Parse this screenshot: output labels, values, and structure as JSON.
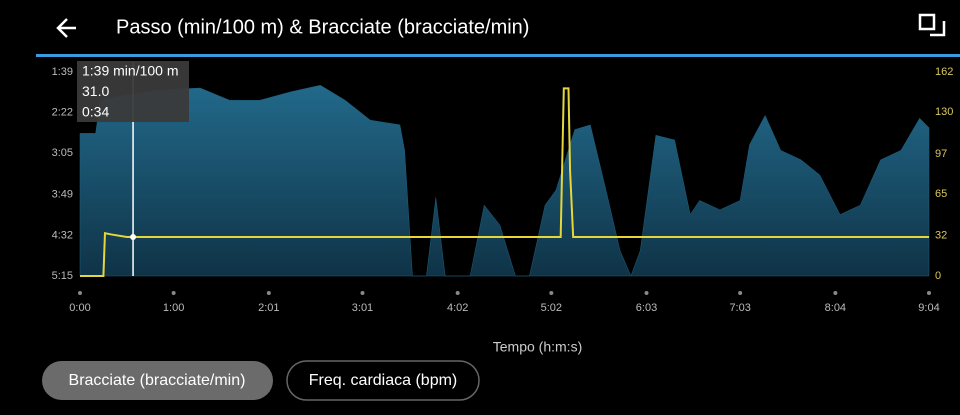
{
  "header": {
    "title": "Passo (min/100 m) & Bracciate (bracciate/min)"
  },
  "chart_data": {
    "type": "combo",
    "xlabel": "Tempo (h:m:s)",
    "xlim": [
      0,
      544
    ],
    "xticks": [
      {
        "value": 0,
        "label": "0:00"
      },
      {
        "value": 60,
        "label": "1:00"
      },
      {
        "value": 121,
        "label": "2:01"
      },
      {
        "value": 181,
        "label": "3:01"
      },
      {
        "value": 242,
        "label": "4:02"
      },
      {
        "value": 302,
        "label": "5:02"
      },
      {
        "value": 363,
        "label": "6:03"
      },
      {
        "value": 423,
        "label": "7:03"
      },
      {
        "value": 484,
        "label": "8:04"
      },
      {
        "value": 544,
        "label": "9:04"
      }
    ],
    "ylim": [
      315,
      99
    ],
    "yticks": [
      {
        "value": 99,
        "label": "1:39"
      },
      {
        "value": 142,
        "label": "2:22"
      },
      {
        "value": 185,
        "label": "3:05"
      },
      {
        "value": 229,
        "label": "3:49"
      },
      {
        "value": 272,
        "label": "4:32"
      },
      {
        "value": 315,
        "label": "5:15"
      }
    ],
    "y2lim": [
      0,
      162
    ],
    "y2ticks": [
      0,
      32,
      65,
      97,
      130,
      162
    ],
    "series": [
      {
        "type": "area",
        "color": "#1f5f7e",
        "x": [
          0,
          10,
          13,
          32,
          51,
          77,
          96,
          115,
          135,
          154,
          170,
          186,
          205,
          208,
          213,
          222,
          228,
          234,
          250,
          259,
          269,
          279,
          288,
          298,
          305,
          317,
          327,
          337,
          346,
          353,
          359,
          369,
          381,
          391,
          397,
          410,
          423,
          429,
          439,
          449,
          462,
          474,
          487,
          500,
          513,
          526,
          538,
          544
        ],
        "values": [
          164,
          164,
          129,
          123,
          118,
          116,
          129,
          129,
          120,
          113,
          129,
          150,
          155,
          182,
          315,
          315,
          232,
          315,
          315,
          240,
          261,
          315,
          315,
          240,
          224,
          160,
          155,
          224,
          288,
          315,
          288,
          166,
          171,
          250,
          235,
          245,
          235,
          176,
          145,
          182,
          192,
          208,
          250,
          240,
          192,
          182,
          148,
          158
        ]
      },
      {
        "type": "line",
        "axis": "y2",
        "name": "Bracciate (bracciate/min)",
        "color": "#e6d63a",
        "x": [
          0,
          15,
          16,
          20,
          30,
          100,
          200,
          240,
          308,
          310,
          313,
          314,
          316,
          400,
          544
        ],
        "values": [
          0,
          0,
          34,
          33,
          31,
          31,
          31,
          31,
          31,
          149,
          149,
          84,
          31,
          31,
          31
        ]
      }
    ],
    "tooltip": {
      "x": 34,
      "lines": [
        "1:39 min/100 m",
        "31.0",
        "0:34"
      ]
    }
  },
  "buttons": [
    "Freq. cardiaca (bpm)"
  ]
}
